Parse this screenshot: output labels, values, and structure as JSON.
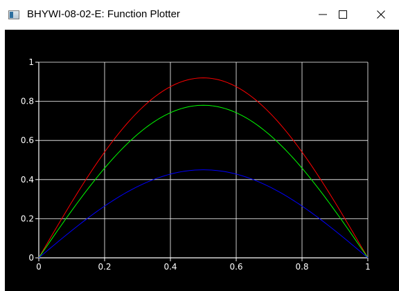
{
  "window": {
    "title": "BHYWI-08-02-E: Function Plotter",
    "icon": "app-window-icon",
    "controls": {
      "minimize": "minimize-icon",
      "maximize": "maximize-icon",
      "close": "close-icon"
    }
  },
  "colors": {
    "background": "#000000",
    "grid": "#ffffff",
    "axes": "#ffffff",
    "series": [
      "#ff0000",
      "#00ff00",
      "#0000ff"
    ]
  },
  "chart_data": {
    "type": "line",
    "title": "",
    "xlabel": "",
    "ylabel": "",
    "xlim": [
      0,
      1
    ],
    "ylim": [
      0,
      1
    ],
    "grid": true,
    "xticks": [
      "0",
      "0.2",
      "0.4",
      "0.6",
      "0.8",
      "1"
    ],
    "yticks": [
      "0",
      "0.2",
      "0.4",
      "0.6",
      "0.8",
      "1"
    ],
    "x": [
      0,
      0.1,
      0.2,
      0.3,
      0.4,
      0.5,
      0.6,
      0.7,
      0.8,
      0.9,
      1
    ],
    "series": [
      {
        "color": "#ff0000",
        "values": [
          0,
          0.32,
          0.58,
          0.79,
          0.91,
          0.92,
          0.91,
          0.79,
          0.58,
          0.32,
          0
        ]
      },
      {
        "color": "#00ff00",
        "values": [
          0,
          0.27,
          0.5,
          0.68,
          0.78,
          0.78,
          0.78,
          0.68,
          0.5,
          0.27,
          0
        ]
      },
      {
        "color": "#0000ff",
        "values": [
          0,
          0.17,
          0.29,
          0.38,
          0.43,
          0.45,
          0.43,
          0.38,
          0.29,
          0.17,
          0
        ]
      }
    ]
  }
}
